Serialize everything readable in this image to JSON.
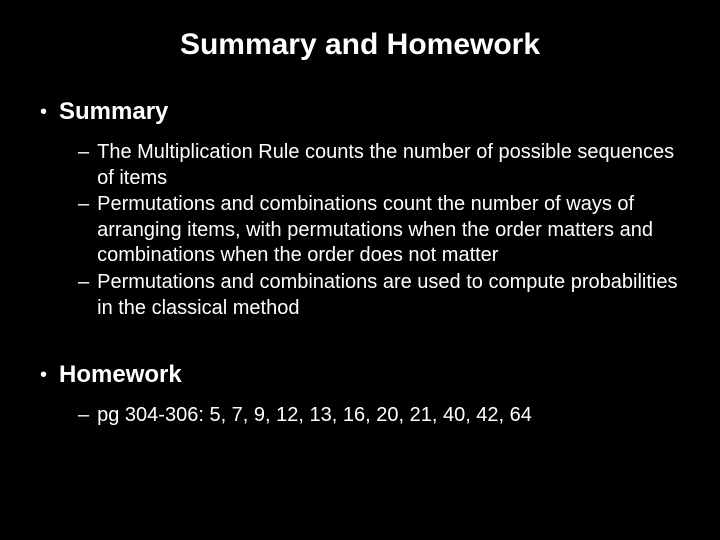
{
  "background_color": "#000000",
  "text_color": "#ffffff",
  "font_family": "Arial",
  "title": "Summary and Homework",
  "title_fontsize": 30,
  "sections": [
    {
      "heading": "Summary",
      "heading_fontsize": 24,
      "items": [
        "The Multiplication Rule counts the number of possible sequences of items",
        "Permutations and combinations count the number of ways of arranging items, with permutations when the order matters and combinations when the order does not matter",
        "Permutations and combinations are used to compute probabilities in the classical method"
      ],
      "item_fontsize": 20
    },
    {
      "heading": "Homework",
      "heading_fontsize": 24,
      "items": [
        "pg 304-306:  5, 7, 9, 12, 13, 16, 20, 21, 40, 42, 64"
      ],
      "item_fontsize": 20
    }
  ]
}
